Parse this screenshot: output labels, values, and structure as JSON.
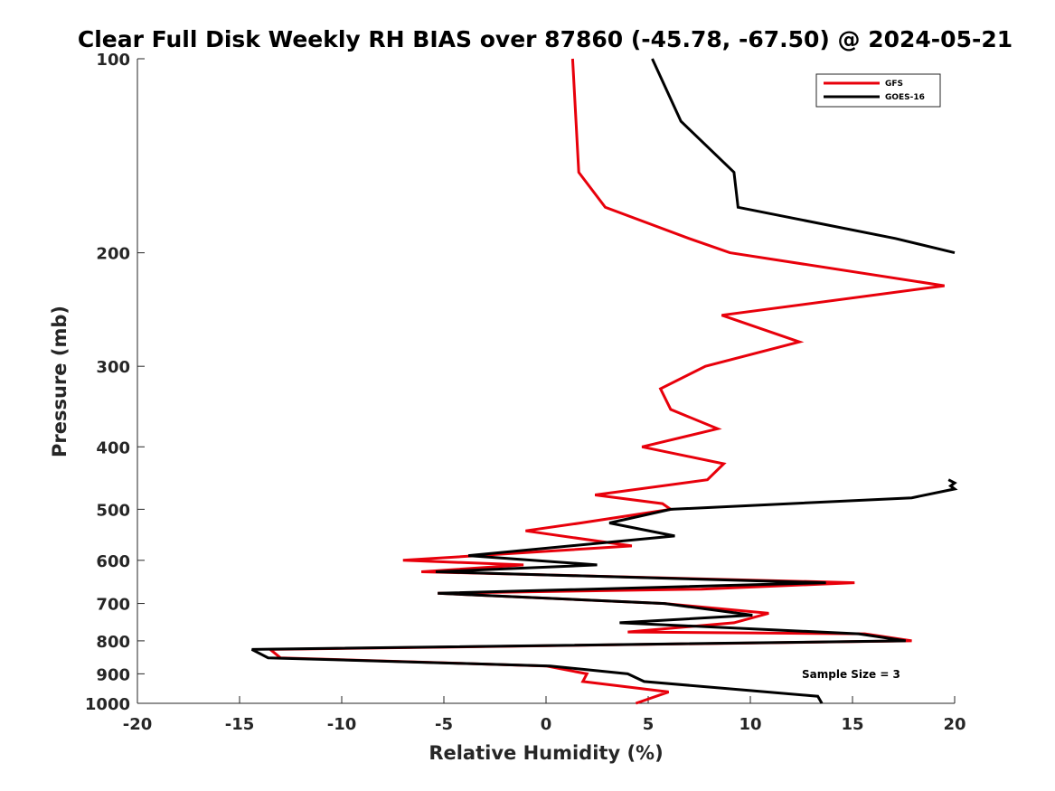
{
  "chart_data": {
    "type": "line",
    "title": "Clear Full Disk Weekly RH BIAS over 87860 (-45.78, -67.50) @ 2024-05-21",
    "xlabel": "Relative Humidity (%)",
    "ylabel": "Pressure (mb)",
    "xlim": [
      -20,
      20
    ],
    "ylim": [
      100,
      1000
    ],
    "y_scale": "log",
    "y_reversed": true,
    "xticks": [
      -20,
      -15,
      -10,
      -5,
      0,
      5,
      10,
      15,
      20
    ],
    "yticks": [
      100,
      200,
      300,
      400,
      500,
      600,
      700,
      800,
      900,
      1000
    ],
    "grid": false,
    "legend": {
      "placement": "top-right"
    },
    "annotation": "Sample Size = 3",
    "series": [
      {
        "name": "GFS",
        "color": "#e8000b",
        "points": [
          [
            1.3,
            100
          ],
          [
            1.6,
            150
          ],
          [
            2.9,
            170
          ],
          [
            7.0,
            190
          ],
          [
            9.0,
            200
          ],
          [
            19.5,
            225
          ],
          [
            8.6,
            250
          ],
          [
            12.4,
            275
          ],
          [
            7.8,
            300
          ],
          [
            5.6,
            325
          ],
          [
            6.1,
            350
          ],
          [
            8.4,
            375
          ],
          [
            4.7,
            400
          ],
          [
            8.7,
            425
          ],
          [
            7.9,
            450
          ],
          [
            2.4,
            475
          ],
          [
            5.7,
            490
          ],
          [
            6.1,
            500
          ],
          [
            1.7,
            525
          ],
          [
            -1.0,
            540
          ],
          [
            4.2,
            570
          ],
          [
            -7.0,
            600
          ],
          [
            -1.1,
            610
          ],
          [
            -6.1,
            625
          ],
          [
            15.1,
            650
          ],
          [
            7.6,
            665
          ],
          [
            -5.3,
            675
          ],
          [
            5.8,
            700
          ],
          [
            10.9,
            725
          ],
          [
            9.2,
            750
          ],
          [
            4.0,
            775
          ],
          [
            15.6,
            780
          ],
          [
            17.9,
            800
          ],
          [
            -13.5,
            825
          ],
          [
            -13.0,
            850
          ],
          [
            0.0,
            875
          ],
          [
            2.0,
            900
          ],
          [
            1.8,
            925
          ],
          [
            6.0,
            960
          ],
          [
            4.4,
            1000
          ]
        ]
      },
      {
        "name": "GOES-16",
        "color": "#000000",
        "points": [
          [
            5.2,
            100
          ],
          [
            6.6,
            125
          ],
          [
            9.2,
            150
          ],
          [
            9.4,
            170
          ],
          [
            17.1,
            190
          ],
          [
            20.0,
            200
          ]
        ],
        "points_2": [
          [
            19.7,
            450
          ],
          [
            20.0,
            455
          ],
          [
            19.8,
            460
          ],
          [
            20.0,
            465
          ],
          [
            17.9,
            480
          ],
          [
            6.1,
            500
          ],
          [
            3.1,
            525
          ],
          [
            6.3,
            550
          ],
          [
            -3.8,
            590
          ],
          [
            2.5,
            610
          ],
          [
            -5.4,
            625
          ],
          [
            13.7,
            650
          ],
          [
            -5.3,
            675
          ],
          [
            5.8,
            700
          ],
          [
            10.1,
            730
          ],
          [
            3.6,
            750
          ],
          [
            15.3,
            780
          ],
          [
            17.6,
            800
          ],
          [
            -14.4,
            825
          ],
          [
            -13.6,
            850
          ],
          [
            0.2,
            875
          ],
          [
            4.0,
            900
          ],
          [
            4.8,
            925
          ],
          [
            13.3,
            975
          ],
          [
            13.5,
            1000
          ]
        ]
      }
    ]
  }
}
